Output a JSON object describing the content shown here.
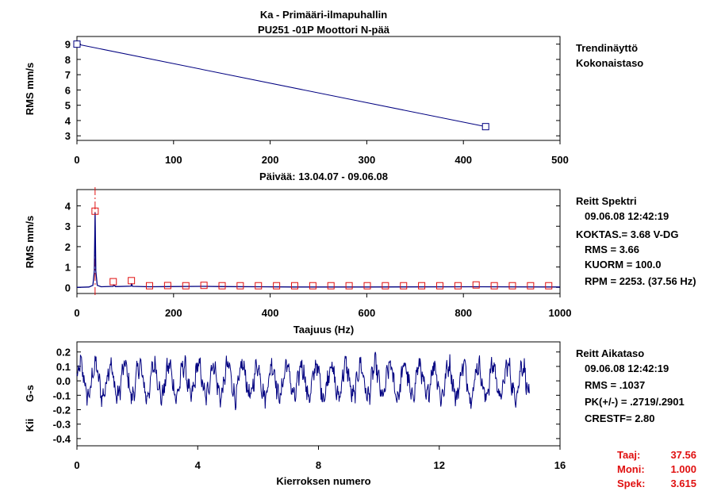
{
  "header": {
    "line1": "Ka   - Primääri-ilmapuhallin",
    "line2": "PU251     -01P   Moottori N-pää"
  },
  "chart_data": [
    {
      "type": "line",
      "ylabel": "RMS mm/s",
      "xlabel": "",
      "x_ticks": [
        "0",
        "100",
        "200",
        "300",
        "400",
        "500"
      ],
      "y_ticks": [
        "3",
        "4",
        "5",
        "6",
        "7",
        "8",
        "9"
      ],
      "xlim": [
        0,
        500
      ],
      "ylim": [
        2.7,
        9.5
      ],
      "series": [
        {
          "x": [
            0,
            423
          ],
          "y": [
            9.0,
            3.6
          ]
        }
      ],
      "color": "#000080",
      "side_labels": [
        "Trendinäyttö",
        "Kokonaistaso"
      ],
      "footer": "Päivää:  13.04.07   - 09.06.08"
    },
    {
      "type": "line",
      "ylabel": "RMS mm/s",
      "xlabel": "Taajuus (Hz)",
      "x_ticks": [
        "0",
        "200",
        "400",
        "600",
        "800",
        "1000"
      ],
      "y_ticks": [
        "0",
        "1",
        "2",
        "3",
        "4"
      ],
      "xlim": [
        0,
        1000
      ],
      "ylim": [
        -0.3,
        4.8
      ],
      "cursor_x": 37.56,
      "spectrum": [
        [
          0,
          0
        ],
        [
          25,
          0.02
        ],
        [
          33,
          0.1
        ],
        [
          36,
          0.8
        ],
        [
          37.56,
          3.66
        ],
        [
          39,
          0.8
        ],
        [
          42,
          0.1
        ],
        [
          50,
          0.03
        ],
        [
          75,
          0.05
        ],
        [
          76,
          0.12
        ],
        [
          80,
          0.04
        ],
        [
          112,
          0.06
        ],
        [
          113,
          0.2
        ],
        [
          115,
          0.05
        ],
        [
          150,
          0.03
        ],
        [
          190,
          0.04
        ],
        [
          262,
          0.05
        ],
        [
          300,
          0.04
        ],
        [
          375,
          0.03
        ],
        [
          450,
          0.02
        ],
        [
          600,
          0.02
        ],
        [
          827,
          0.03
        ],
        [
          1000,
          0.02
        ]
      ],
      "harmonics": [
        [
          37.56,
          3.74
        ],
        [
          75.1,
          0.28
        ],
        [
          112.7,
          0.33
        ],
        [
          150.2,
          0.08
        ],
        [
          187.8,
          0.09
        ],
        [
          225.4,
          0.08
        ],
        [
          262.9,
          0.1
        ],
        [
          300.5,
          0.08
        ],
        [
          338.0,
          0.08
        ],
        [
          375.6,
          0.08
        ],
        [
          413.2,
          0.08
        ],
        [
          450.7,
          0.08
        ],
        [
          488.3,
          0.08
        ],
        [
          525.8,
          0.08
        ],
        [
          563.4,
          0.08
        ],
        [
          601.0,
          0.08
        ],
        [
          638.5,
          0.08
        ],
        [
          676.1,
          0.08
        ],
        [
          713.6,
          0.08
        ],
        [
          751.2,
          0.08
        ],
        [
          788.8,
          0.08
        ],
        [
          826.3,
          0.12
        ],
        [
          863.9,
          0.08
        ],
        [
          901.4,
          0.08
        ],
        [
          939.0,
          0.08
        ],
        [
          976.6,
          0.08
        ]
      ],
      "color": "#000080",
      "marker_color": "#e01010",
      "side_labels": [
        "Reitt Spektri",
        "09.06.08   12:42:19",
        "KOKTAS.= 3.68 V-DG",
        "RMS =  3.66",
        "KUORM = 100.0",
        "RPM = 2253. (37.56 Hz)"
      ]
    },
    {
      "type": "line",
      "ylabel": "G-s",
      "ylabel2": "Kii",
      "xlabel": "Kierroksen numero",
      "x_ticks": [
        "0",
        "4",
        "8",
        "12",
        "16"
      ],
      "y_ticks": [
        "0.2",
        "0.1",
        "0.0",
        "-0.1",
        "-0.2",
        "-0.3",
        "-0.4"
      ],
      "xlim": [
        0,
        16
      ],
      "ylim": [
        -0.45,
        0.27
      ],
      "color": "#000080",
      "rms": 0.1037,
      "peak_pos": 0.2719,
      "peak_neg": -0.2901,
      "cycles_per_rev": 2.05,
      "x_end": 15.0,
      "side_labels": [
        "Reitt Aikataso",
        "09.06.08   12:42:19",
        "RMS =  .1037",
        "PK(+/-) = .2719/.2901",
        "CRESTF= 2.80"
      ]
    }
  ],
  "cursor_readout": {
    "taaj_label": "Taaj:",
    "taaj_value": "37.56",
    "moni_label": "Moni:",
    "moni_value": "1.000",
    "spek_label": "Spek:",
    "spek_value": "3.615"
  }
}
